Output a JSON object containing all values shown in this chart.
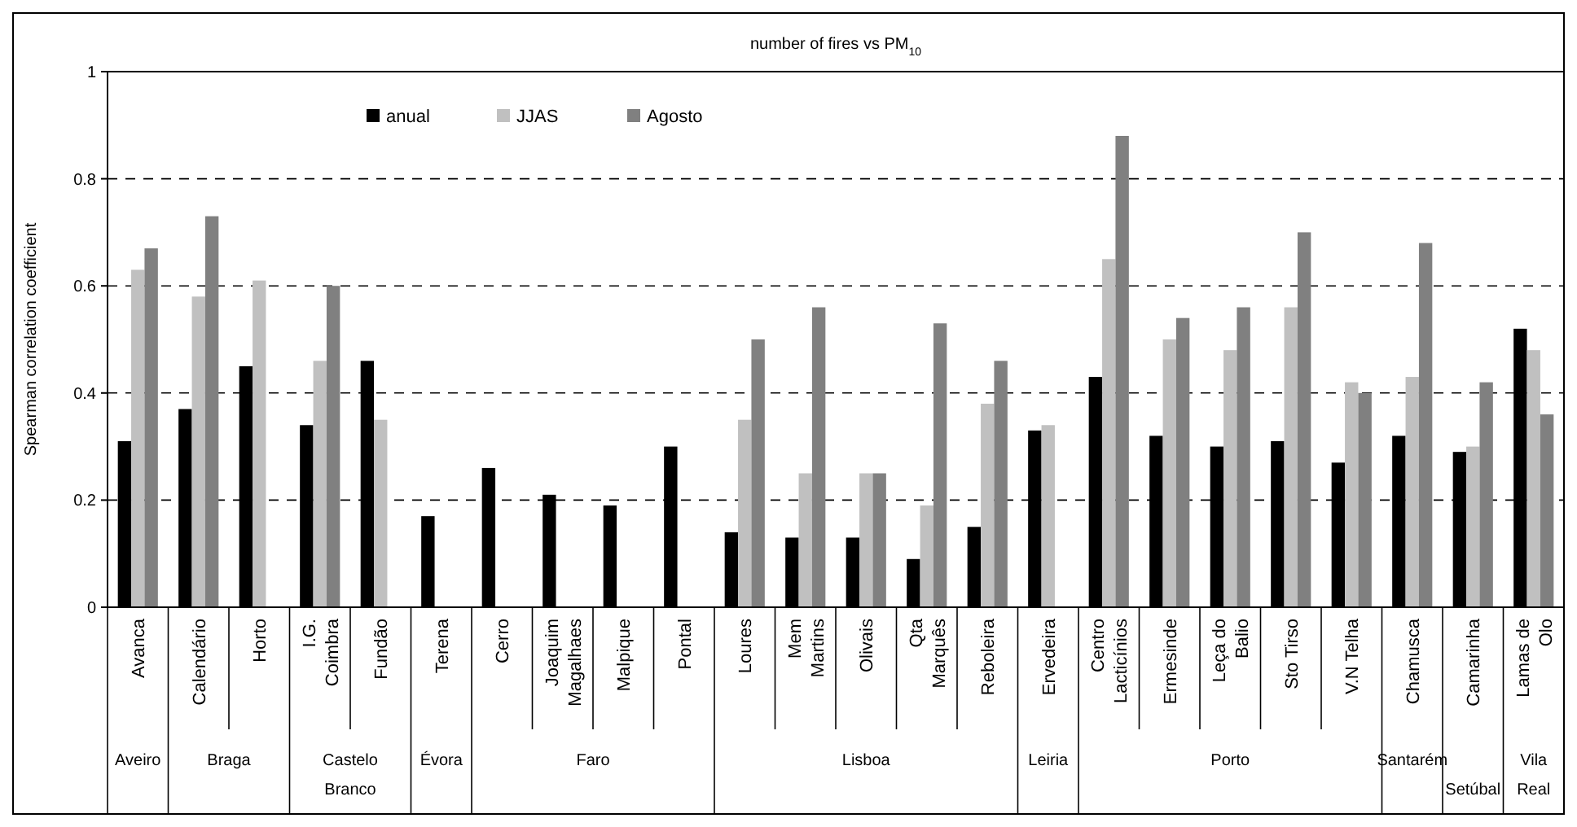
{
  "chart_data": {
    "type": "bar",
    "title": "number of fires vs PM$_{10}$",
    "ylabel": "Spearman correlation coefficient",
    "categories": [
      "Avanca",
      "Calendário",
      "Horto",
      "I.G.\nCoimbra",
      "Fundão",
      "Terena",
      "Cerro",
      "Joaquim\nMagalhaes",
      "Malpique",
      "Pontal",
      "Loures",
      "Mem\nMartins",
      "Olivais",
      "Qta\nMarquês",
      "Reboleira",
      "Ervedeira",
      "Centro\nLacticínios",
      "Ermesinde",
      "Leça do\nBalio",
      "Sto Tirso",
      "V.N Telha",
      "Chamusca",
      "Camarinha",
      "Lamas de\nOlo"
    ],
    "series": [
      {
        "name": "anual",
        "color": "#000000",
        "values": [
          0.31,
          0.37,
          0.45,
          0.34,
          0.46,
          0.17,
          0.26,
          0.21,
          0.19,
          0.3,
          0.14,
          0.13,
          0.13,
          0.09,
          0.15,
          0.33,
          0.43,
          0.32,
          0.3,
          0.31,
          0.27,
          0.32,
          0.29,
          0.52
        ]
      },
      {
        "name": "JJAS",
        "color": "#c0c0c0",
        "values": [
          0.63,
          0.58,
          0.61,
          0.46,
          0.35,
          null,
          null,
          null,
          null,
          null,
          0.35,
          0.25,
          0.25,
          0.19,
          0.38,
          0.34,
          0.65,
          0.5,
          0.48,
          0.56,
          0.42,
          0.43,
          0.3,
          0.48
        ]
      },
      {
        "name": "Agosto",
        "color": "#808080",
        "values": [
          0.67,
          0.73,
          null,
          0.6,
          null,
          null,
          null,
          null,
          null,
          null,
          0.5,
          0.56,
          0.25,
          0.53,
          0.46,
          null,
          0.88,
          0.54,
          0.56,
          0.7,
          0.4,
          0.68,
          0.42,
          0.36
        ]
      }
    ],
    "annotations": [
      "Aveiro",
      "Braga",
      "Castelo Branco",
      "Évora",
      "Faro",
      "Lisboa",
      "Leiria",
      "Porto",
      "Santarém",
      "Setúbal",
      "Vila Real"
    ],
    "ylim": [
      0,
      1
    ],
    "yticks": [
      0,
      0.2,
      0.4,
      0.6,
      0.8,
      1
    ],
    "grid": "y",
    "legend": "top left"
  }
}
